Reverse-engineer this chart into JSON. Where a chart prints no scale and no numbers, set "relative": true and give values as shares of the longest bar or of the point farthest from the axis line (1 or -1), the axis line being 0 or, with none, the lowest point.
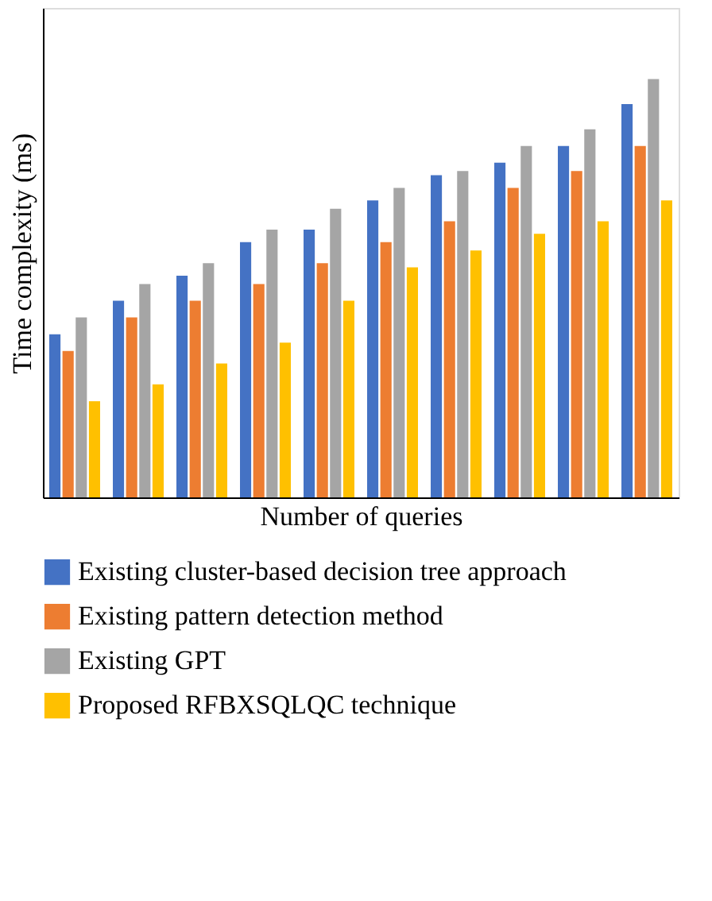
{
  "chart_data": {
    "type": "bar",
    "xlabel": "Number of queries",
    "ylabel": "Time complexity (ms)",
    "relative": true,
    "tick_labels": false,
    "grid": false,
    "legend": "bottom",
    "categories": [
      null,
      null,
      null,
      null,
      null,
      null,
      null,
      null,
      null,
      null
    ],
    "series": [
      {
        "name": "Existing cluster-based decision tree approach",
        "color": "#4472c4",
        "values": [
          0.39,
          0.47,
          0.53,
          0.61,
          0.64,
          0.71,
          0.77,
          0.8,
          0.84,
          0.94
        ]
      },
      {
        "name": "Existing pattern detection method",
        "color": "#ed7d31",
        "values": [
          0.35,
          0.43,
          0.47,
          0.51,
          0.56,
          0.61,
          0.66,
          0.74,
          0.78,
          0.84
        ]
      },
      {
        "name": "Existing GPT",
        "color": "#a5a5a5",
        "values": [
          0.43,
          0.51,
          0.56,
          0.64,
          0.69,
          0.74,
          0.78,
          0.84,
          0.88,
          1
        ]
      },
      {
        "name": "Proposed RFBXSQLQC technique",
        "color": "#ffc000",
        "values": [
          0.23,
          0.27,
          0.32,
          0.37,
          0.47,
          0.55,
          0.59,
          0.63,
          0.66,
          0.71
        ]
      }
    ]
  }
}
